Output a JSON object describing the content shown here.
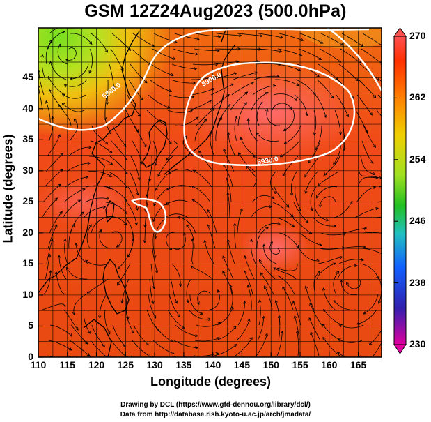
{
  "title": "GSM 12Z24Aug2023 (500.0hPa)",
  "axes": {
    "xlabel": "Longitude (degrees)",
    "ylabel": "Latitude  (degrees)",
    "xticks": [
      "110",
      "115",
      "120",
      "125",
      "130",
      "135",
      "140",
      "145",
      "150",
      "155",
      "160",
      "165"
    ],
    "yticks": [
      "0",
      "5",
      "10",
      "15",
      "20",
      "25",
      "30",
      "35",
      "40",
      "45"
    ]
  },
  "map_extent": {
    "lon_min": 110,
    "lon_max": 169,
    "lat_min": 0,
    "lat_max": 53
  },
  "colorbar": {
    "ticks": [
      "230",
      "238",
      "246",
      "254",
      "262",
      "270"
    ],
    "range": [
      230,
      270
    ],
    "colors": [
      "#e000a0",
      "#3030c0",
      "#2080ff",
      "#20c0c0",
      "#20c020",
      "#a0e020",
      "#f0d000",
      "#ff8000",
      "#ff3000",
      "#ff5050"
    ]
  },
  "contours": [
    {
      "label": "5880.0",
      "value": 5880,
      "color": "#ffffff"
    },
    {
      "label": "5900.0",
      "value": 5900,
      "color": "#ffffff"
    },
    {
      "label": "5930.0",
      "value": 5930,
      "color": "#ffffff"
    }
  ],
  "credits": {
    "line1": "Drawing by DCL (https://www.gfd-dennou.org/library/dcl/)",
    "line2": "Data from http://database.rish.kyoto-u.ac.jp/arch/jmadata/"
  }
}
